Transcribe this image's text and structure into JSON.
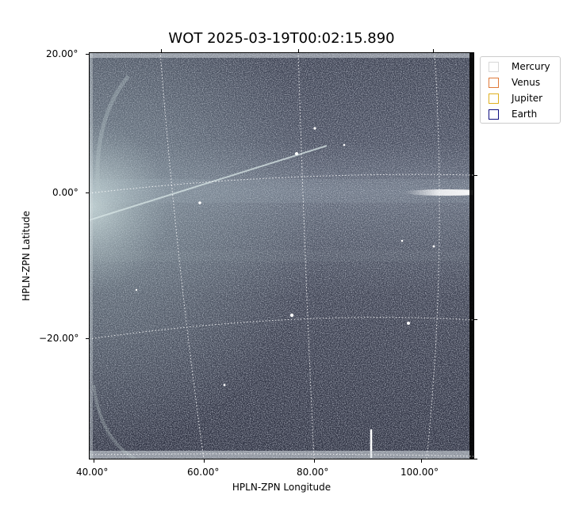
{
  "title": "WOT 2025-03-19T00:02:15.890",
  "xlabel": "HPLN-ZPN Longitude",
  "ylabel": "HPLN-ZPN Latitude",
  "x_ticks": [
    "40.00°",
    "60.00°",
    "80.00°",
    "100.00°"
  ],
  "y_ticks": [
    "20.00°",
    "0.00°",
    "−20.00°"
  ],
  "legend": [
    {
      "label": "Mercury",
      "color": "#e0e0e0"
    },
    {
      "label": "Venus",
      "color": "#e07a3a"
    },
    {
      "label": "Jupiter",
      "color": "#e0b020"
    },
    {
      "label": "Earth",
      "color": "#101080"
    }
  ],
  "colors": {
    "background_dark": "#1c1f2b",
    "background_mid": "#4a5060",
    "highlight": "#e8eef0",
    "grid": "#ffffff"
  }
}
